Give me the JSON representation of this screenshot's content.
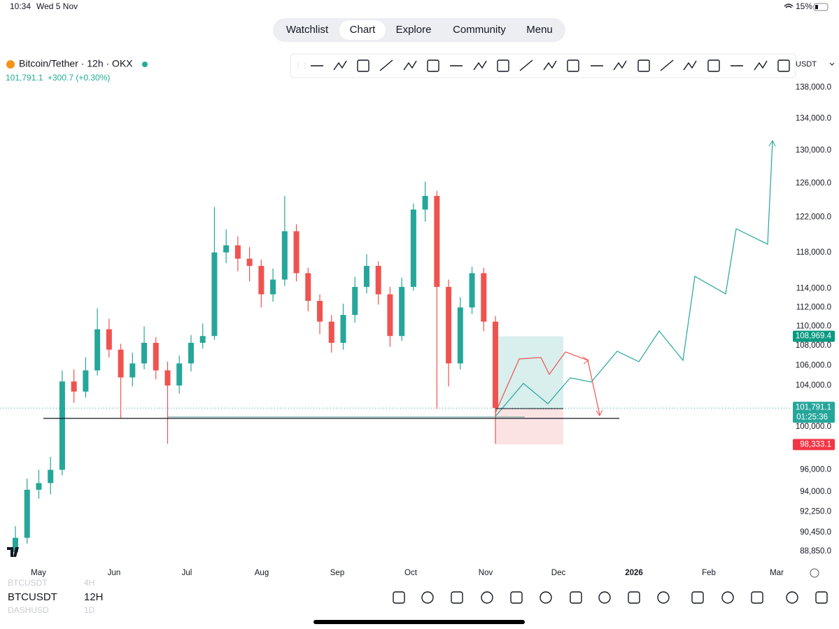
{
  "status_bar": {
    "time": "10:34",
    "date": "Wed 5 Nov",
    "battery": "15%"
  },
  "nav": {
    "tabs": [
      "Watchlist",
      "Chart",
      "Explore",
      "Community",
      "Menu"
    ],
    "selected": "Chart"
  },
  "header": {
    "symbol": "Bitcoin/Tether · 12h · OKX",
    "price": "101,791.1",
    "change": "+300.7 (+0.30%)",
    "currency": "USDT"
  },
  "symbol_picker": [
    {
      "symbol": "BTCUSDT",
      "interval": "4H"
    },
    {
      "symbol": "BTCUSDT",
      "interval": "12H"
    },
    {
      "symbol": "DASHUSD",
      "interval": "1D"
    }
  ],
  "chart_data": {
    "type": "candlestick",
    "log_scale": true,
    "up_color": "#26a69a",
    "down_color": "#ef5350",
    "open": [
      88800,
      90000,
      94200,
      94800,
      96000,
      104400,
      103400,
      105500,
      109700,
      107600,
      104800,
      106200,
      108300,
      105500,
      104000,
      106200,
      108300,
      109000,
      118000,
      118800,
      117300,
      116500,
      113400,
      115000,
      120400,
      115700,
      112700,
      110500,
      108300,
      111200,
      114200,
      116500,
      113400,
      109000,
      114200,
      122900,
      124500,
      114200,
      106200,
      112000,
      115700,
      110500
    ],
    "high": [
      91000,
      95200,
      96000,
      97200,
      105500,
      105600,
      106800,
      111900,
      110800,
      108200,
      107300,
      110000,
      108900,
      106400,
      107000,
      109100,
      110300,
      123200,
      120600,
      119800,
      118600,
      117200,
      116200,
      124500,
      121200,
      116300,
      113400,
      111200,
      112400,
      115300,
      117800,
      117000,
      114200,
      115200,
      123600,
      126200,
      125100,
      115000,
      113100,
      116400,
      116300,
      111100
    ],
    "low": [
      88400,
      89500,
      93400,
      93800,
      95500,
      102300,
      102800,
      105000,
      106800,
      100800,
      103900,
      105600,
      104600,
      98400,
      103200,
      105400,
      107700,
      108600,
      116800,
      115900,
      114800,
      112000,
      112600,
      114300,
      114800,
      111600,
      109200,
      107300,
      107600,
      110400,
      113500,
      112300,
      107900,
      108500,
      113800,
      121500,
      101700,
      103900,
      105600,
      111300,
      109500,
      98400
    ],
    "close": [
      90000,
      94200,
      94800,
      96000,
      104400,
      103400,
      105500,
      109700,
      107600,
      104800,
      106200,
      108300,
      105500,
      104000,
      106200,
      108300,
      109000,
      118000,
      118800,
      117300,
      116500,
      113400,
      115000,
      120400,
      115700,
      112700,
      110500,
      108300,
      111200,
      114200,
      116500,
      113400,
      109000,
      114200,
      122900,
      124500,
      114200,
      106200,
      112000,
      115700,
      110500,
      101800
    ],
    "ylim": [
      87680,
      142000
    ],
    "yticks": [
      {
        "value": 138000,
        "label": "138,000.0"
      },
      {
        "value": 134000,
        "label": "134,000.0"
      },
      {
        "value": 130000,
        "label": "130,000.0"
      },
      {
        "value": 126000,
        "label": "126,000.0"
      },
      {
        "value": 122000,
        "label": "122,000.0"
      },
      {
        "value": 118000,
        "label": "118,000.0"
      },
      {
        "value": 114000,
        "label": "114,000.0"
      },
      {
        "value": 112000,
        "label": "112,000.0"
      },
      {
        "value": 110000,
        "label": "110,000.0"
      },
      {
        "value": 108000,
        "label": "108,000.0"
      },
      {
        "value": 106000,
        "label": "106,000.0"
      },
      {
        "value": 104000,
        "label": "104,000.0"
      },
      {
        "value": 100000,
        "label": "100,000.0"
      },
      {
        "value": 96000,
        "label": "96,000.0"
      },
      {
        "value": 94000,
        "label": "94,000.0"
      },
      {
        "value": 92250,
        "label": "92,250.0"
      },
      {
        "value": 90450,
        "label": "90,450.0"
      },
      {
        "value": 88850,
        "label": "88,850.0"
      }
    ],
    "x_labels": [
      "May",
      "Jun",
      "Jul",
      "Aug",
      "Sep",
      "Oct",
      "Nov",
      "Dec",
      "2026",
      "Feb",
      "Mar"
    ],
    "take_profit": {
      "value": 108969.4,
      "label": "108,969.4"
    },
    "last_price": {
      "value": 101791.1,
      "label": "101,791.1",
      "countdown": "01:25:36"
    },
    "stop_loss": {
      "value": 98333.1,
      "label": "98,333.1"
    }
  }
}
